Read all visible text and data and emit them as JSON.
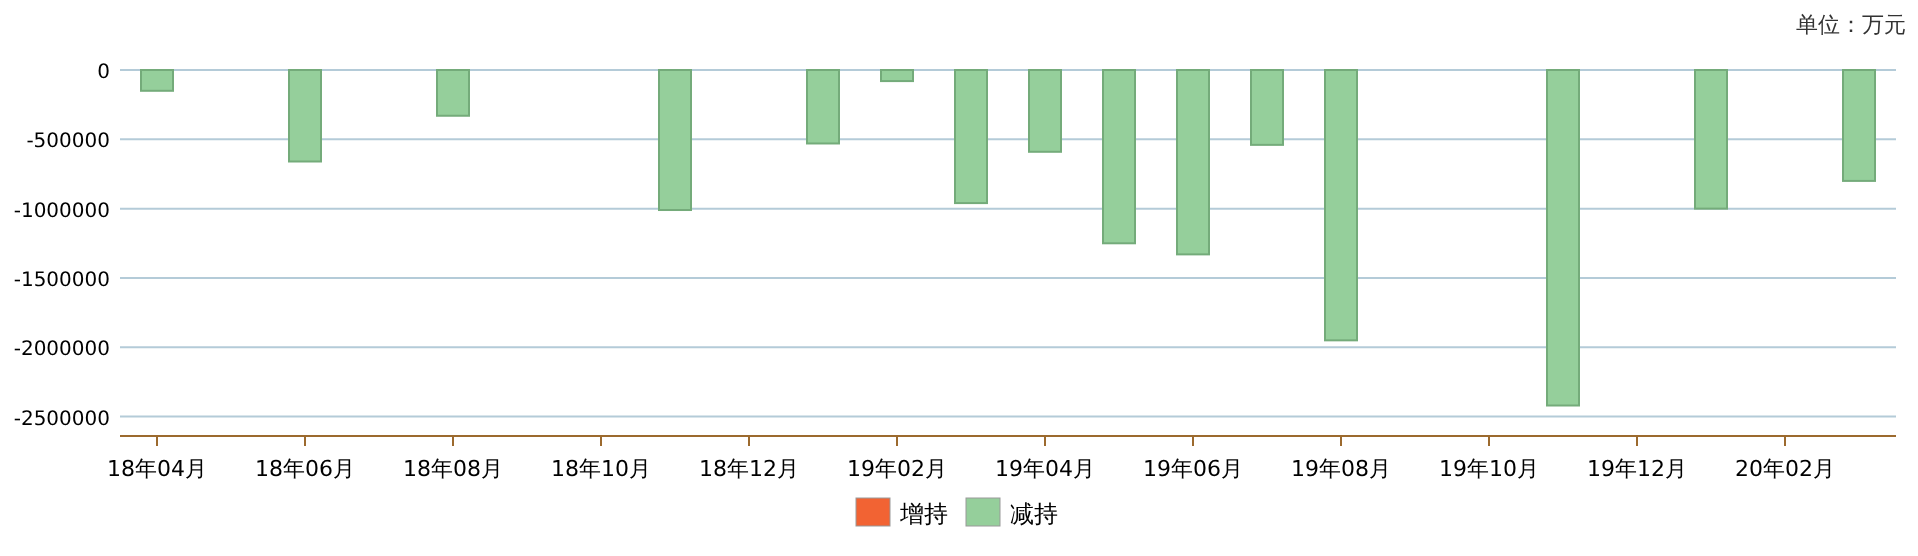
{
  "chart_data": {
    "type": "bar",
    "stacked": true,
    "categories": [
      "18年04月",
      null,
      "18年06月",
      null,
      "18年08月",
      null,
      "18年10月",
      null,
      "18年12月",
      null,
      "19年02月",
      null,
      "19年04月",
      null,
      "19年06月",
      null,
      "19年08月",
      null,
      "19年10月",
      null,
      "19年12月",
      null,
      "20年02月",
      null
    ],
    "series": [
      {
        "name": "增持",
        "color": "#f26333",
        "values": [
          null,
          null,
          null,
          null,
          null,
          null,
          null,
          null,
          null,
          null,
          null,
          null,
          null,
          null,
          null,
          null,
          null,
          null,
          null,
          null,
          null,
          null,
          null,
          null
        ]
      },
      {
        "name": "减持",
        "color": "#95cf9b",
        "values": [
          -150000,
          null,
          -660000,
          null,
          -330000,
          null,
          null,
          -1010000,
          null,
          -530000,
          -80000,
          -960000,
          -590000,
          -1250000,
          -1330000,
          -540000,
          -1950000,
          null,
          null,
          -2420000,
          null,
          -1000000,
          null,
          -800000
        ]
      }
    ],
    "ylim": [
      -2640000,
      0
    ],
    "yticks": [
      0,
      -500000,
      -1000000,
      -1500000,
      -2000000,
      -2500000
    ],
    "grid": "y",
    "legend": "bottom",
    "annotations": [
      "单位：万元"
    ]
  }
}
